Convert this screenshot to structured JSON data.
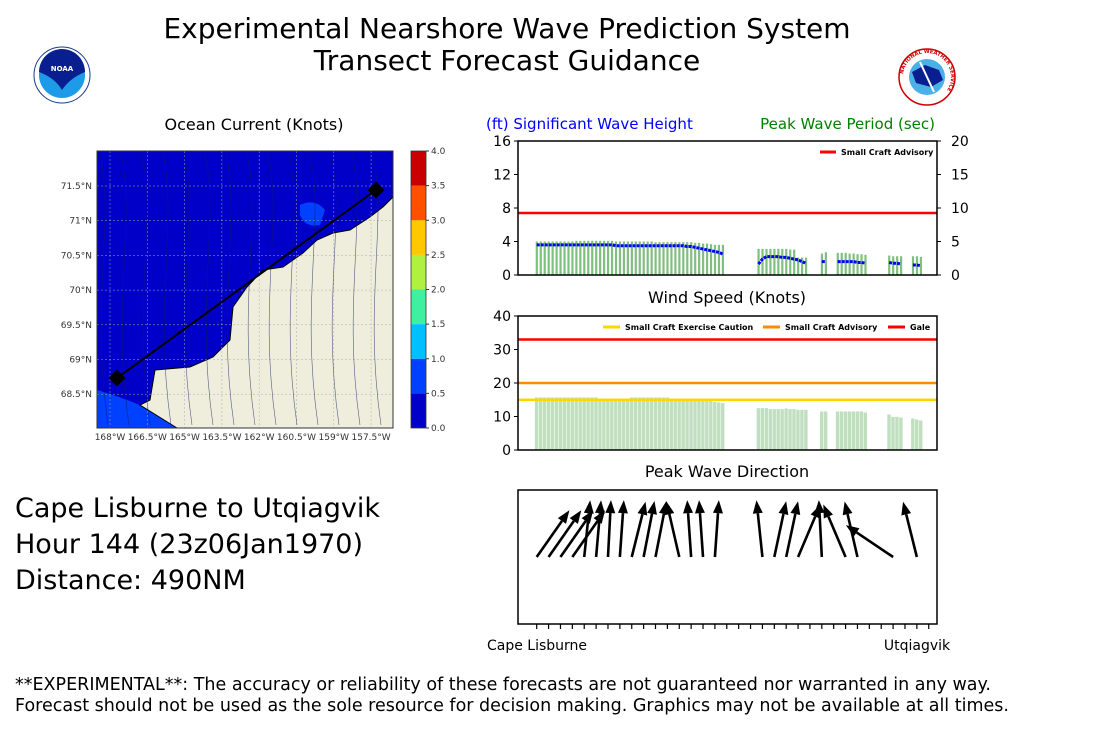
{
  "header": {
    "title_line1": "Experimental Nearshore Wave Prediction System",
    "title_line2": "Transect Forecast Guidance",
    "left_logo_text": "NOAA",
    "right_logo_text": "NATIONAL WEATHER SERVICE"
  },
  "info": {
    "transect": "Cape Lisburne to Utqiagvik",
    "hour": "Hour 144 (23z06Jan1970)",
    "distance": "Distance: 490NM"
  },
  "disclaimer": {
    "line1": "**EXPERIMENTAL**: The accuracy or reliability of these forecasts are not guaranteed nor warranted in any way.",
    "line2": "Forecast should not be used as the sole resource for decision making. Graphics may not be available at all times."
  },
  "colors": {
    "height": "#0000ff",
    "period": "#008000",
    "period_bar": "#7fbf7f",
    "wind_bar": "#bfdfbf",
    "caution": "#ffd700",
    "advisory": "#ff8c00",
    "gale": "#ff0000"
  },
  "chart_data": [
    {
      "type": "map",
      "title": "Ocean Current (Knots)",
      "lat_ticks": [
        "71.5°N",
        "71°N",
        "70.5°N",
        "70°N",
        "69.5°N",
        "69°N",
        "68.5°N"
      ],
      "lon_ticks": [
        "168°W",
        "166.5°W",
        "165°W",
        "163.5°W",
        "162°W",
        "160.5°W",
        "159°W",
        "157.5°W"
      ],
      "colorbar": {
        "ticks": [
          "0.0",
          "0.5",
          "1.0",
          "1.5",
          "2.0",
          "2.5",
          "3.0",
          "3.5",
          "4.0"
        ],
        "colors": [
          "#0000c8",
          "#0040ff",
          "#00c0ff",
          "#40f0a0",
          "#b0f040",
          "#ffc800",
          "#ff5000",
          "#c80000"
        ],
        "range": [
          0,
          4
        ]
      }
    },
    {
      "type": "bar+line",
      "title_left": "(ft) Significant Wave Height",
      "title_right": "Peak Wave Period (sec)",
      "ylim_left": [
        0,
        16
      ],
      "yticks_left": [
        "0",
        "4",
        "8",
        "12",
        "16"
      ],
      "ylim_right": [
        0,
        20
      ],
      "yticks_right": [
        "0",
        "5",
        "10",
        "15",
        "20"
      ],
      "threshold": {
        "name": "Small Craft Advisory",
        "value": 7.4
      },
      "segments": [
        {
          "start": 0,
          "period": [
            5.0,
            5.0,
            5.0,
            5.0,
            5.0,
            5.0,
            5.0,
            5.0,
            5.0,
            5.0,
            5.1,
            5.1,
            5.1,
            5.1,
            5.1,
            5.1,
            5.1,
            5.1,
            5.1,
            5.1,
            5.0,
            5.0,
            5.0,
            5.0,
            5.0,
            5.0,
            5.0,
            5.0,
            5.0,
            5.0,
            4.9,
            4.9,
            4.9,
            4.9,
            4.9,
            4.9,
            4.9,
            4.9,
            4.9,
            4.9,
            4.8,
            4.8,
            4.7,
            4.7,
            4.6,
            4.5,
            4.5,
            4.5
          ],
          "height": [
            3.6,
            3.6,
            3.6,
            3.6,
            3.6,
            3.6,
            3.6,
            3.6,
            3.6,
            3.6,
            3.6,
            3.6,
            3.6,
            3.6,
            3.6,
            3.6,
            3.6,
            3.6,
            3.6,
            3.6,
            3.5,
            3.5,
            3.5,
            3.5,
            3.5,
            3.5,
            3.5,
            3.5,
            3.5,
            3.5,
            3.5,
            3.5,
            3.5,
            3.5,
            3.5,
            3.5,
            3.5,
            3.5,
            3.4,
            3.4,
            3.3,
            3.2,
            3.1,
            3.0,
            2.9,
            2.8,
            2.7,
            2.5
          ]
        },
        {
          "start": 56,
          "period": [
            3.9,
            3.9,
            3.9,
            3.9,
            3.9,
            3.9,
            3.9,
            3.9,
            3.8,
            3.8,
            2.6,
            2.6,
            2.6
          ],
          "height": [
            1.3,
            1.9,
            2.2,
            2.2,
            2.2,
            2.2,
            2.1,
            2.1,
            2.0,
            1.9,
            1.8,
            1.6,
            1.4
          ]
        },
        {
          "start": 72,
          "period": [
            3.2,
            3.4
          ],
          "height": [
            1.6,
            1.6
          ]
        },
        {
          "start": 76,
          "period": [
            3.3,
            3.3,
            3.3,
            3.2,
            3.2,
            3.1,
            3.1,
            3.0
          ],
          "height": [
            1.6,
            1.6,
            1.6,
            1.6,
            1.6,
            1.5,
            1.5,
            1.4
          ]
        },
        {
          "start": 89,
          "period": [
            2.9,
            2.8,
            2.8,
            2.8
          ],
          "height": [
            1.5,
            1.4,
            1.4,
            1.3
          ]
        },
        {
          "start": 95,
          "period": [
            2.8,
            2.8,
            2.7
          ],
          "height": [
            1.2,
            1.2,
            1.1
          ]
        }
      ]
    },
    {
      "type": "bar",
      "title": "Wind Speed (Knots)",
      "ylim": [
        0,
        40
      ],
      "yticks": [
        "0",
        "10",
        "20",
        "30",
        "40"
      ],
      "thresholds": [
        {
          "name": "Small Craft Exercise Caution",
          "value": 15
        },
        {
          "name": "Small Craft Advisory",
          "value": 20
        },
        {
          "name": "Gale",
          "value": 33
        }
      ],
      "segments": [
        {
          "start": 0,
          "values": [
            15.7,
            15.7,
            15.7,
            15.7,
            15.7,
            15.7,
            15.7,
            15.7,
            15.7,
            15.7,
            15.7,
            15.7,
            15.7,
            15.7,
            15.7,
            15.7,
            15.2,
            15.2,
            15.2,
            15.2,
            15.2,
            15.2,
            15.2,
            15.2,
            15.7,
            15.7,
            15.7,
            15.7,
            15.7,
            15.7,
            15.7,
            15.7,
            15.7,
            15.7,
            15.3,
            15.3,
            15.3,
            15.3,
            15.3,
            15.3,
            15.3,
            15.3,
            15.0,
            14.8,
            14.6,
            14.4,
            14.2,
            14.0
          ]
        },
        {
          "start": 56,
          "values": [
            12.5,
            12.5,
            12.5,
            12.2,
            12.2,
            12.2,
            12.2,
            12.4,
            12.2,
            12.2,
            12.0,
            12.0,
            12.0
          ]
        },
        {
          "start": 72,
          "values": [
            11.5,
            11.5
          ]
        },
        {
          "start": 76,
          "values": [
            11.5,
            11.5,
            11.5,
            11.5,
            11.5,
            11.5,
            11.5,
            11.2
          ]
        },
        {
          "start": 89,
          "values": [
            10.6,
            9.9,
            9.9,
            9.7
          ]
        },
        {
          "start": 95,
          "values": [
            9.4,
            9.1,
            8.8
          ]
        }
      ]
    },
    {
      "type": "quiver",
      "title": "Peak Wave Direction",
      "x_start_label": "Cape Lisburne",
      "x_end_label": "Utqiagvik",
      "tick_count": 34,
      "arrows": [
        {
          "tick": 0,
          "from_deg": 325
        },
        {
          "tick": 1,
          "from_deg": 325
        },
        {
          "tick": 2,
          "from_deg": 325
        },
        {
          "tick": 3,
          "from_deg": 325
        },
        {
          "tick": 4,
          "from_deg": 354
        },
        {
          "tick": 5,
          "from_deg": 355
        },
        {
          "tick": 6,
          "from_deg": 357
        },
        {
          "tick": 7,
          "from_deg": 356
        },
        {
          "tick": 8,
          "from_deg": 346
        },
        {
          "tick": 9,
          "from_deg": 349
        },
        {
          "tick": 10,
          "from_deg": 349
        },
        {
          "tick": 12,
          "from_deg": 13
        },
        {
          "tick": 13,
          "from_deg": 4
        },
        {
          "tick": 14,
          "from_deg": 4
        },
        {
          "tick": 15,
          "from_deg": 356
        },
        {
          "tick": 19,
          "from_deg": 6
        },
        {
          "tick": 20,
          "from_deg": 348
        },
        {
          "tick": 21,
          "from_deg": 348
        },
        {
          "tick": 22,
          "from_deg": 337
        },
        {
          "tick": 24,
          "from_deg": 3
        },
        {
          "tick": 26,
          "from_deg": 23
        },
        {
          "tick": 27,
          "from_deg": 13
        },
        {
          "tick": 30,
          "from_deg": 56
        },
        {
          "tick": 32,
          "from_deg": 14
        }
      ]
    }
  ]
}
